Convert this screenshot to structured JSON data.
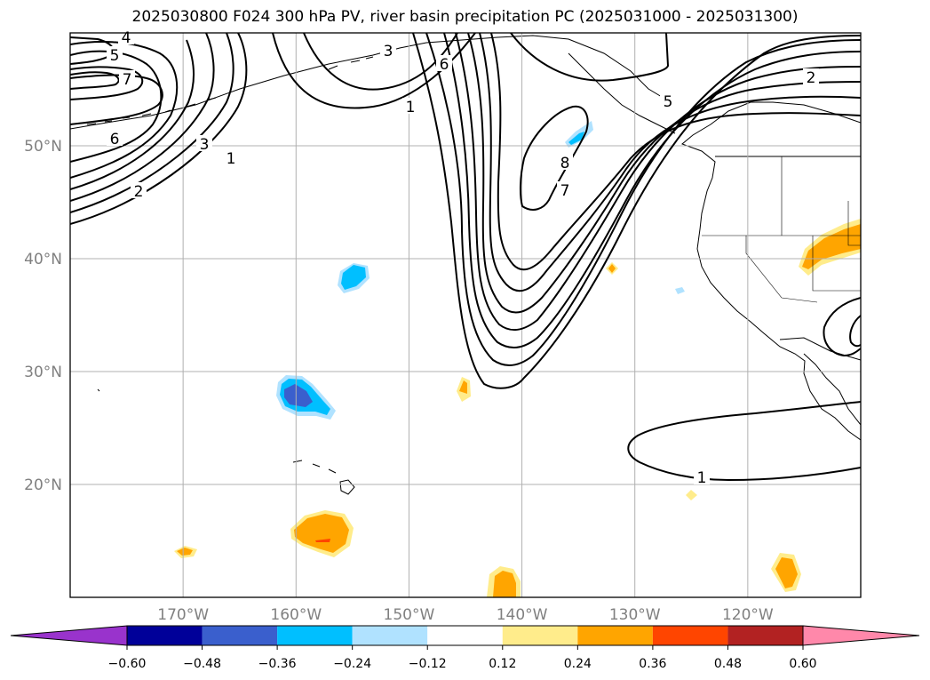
{
  "title": "2025030800 F024 300 hPa PV, river basin precipitation PC (2025031000 - 2025031300)",
  "lat_labels": [
    {
      "lat": 50,
      "label": "50°N"
    },
    {
      "lat": 40,
      "label": "40°N"
    },
    {
      "lat": 30,
      "label": "30°N"
    },
    {
      "lat": 20,
      "label": "20°N"
    }
  ],
  "lon_labels": [
    {
      "lon": -170,
      "label": "170°W"
    },
    {
      "lon": -160,
      "label": "160°W"
    },
    {
      "lon": -150,
      "label": "150°W"
    },
    {
      "lon": -140,
      "label": "140°W"
    },
    {
      "lon": -130,
      "label": "130°W"
    },
    {
      "lon": -120,
      "label": "120°W"
    }
  ],
  "extent": {
    "lon_min": -180,
    "lon_max": -110,
    "lat_min": 10,
    "lat_max": 60
  },
  "contour_labels": [
    "4",
    "5",
    "7",
    "6",
    "2",
    "3",
    "1",
    "3",
    "6",
    "1",
    "2",
    "5",
    "8",
    "7",
    "1"
  ],
  "colorbar": {
    "ticks": [
      "−0.60",
      "−0.48",
      "−0.36",
      "−0.24",
      "−0.12",
      "0.12",
      "0.24",
      "0.36",
      "0.48",
      "0.60"
    ],
    "colors": [
      "#9933cc",
      "#000099",
      "#3a5fcd",
      "#00bfff",
      "#b0e2ff",
      "#ffffff",
      "#ffec8b",
      "#ffa500",
      "#ff4500",
      "#b22222",
      "#ff88aa"
    ]
  },
  "colors": {
    "contour": "#000000",
    "grid": "#b0b0b0",
    "tick_label": "#808080",
    "coast": "#000000"
  }
}
